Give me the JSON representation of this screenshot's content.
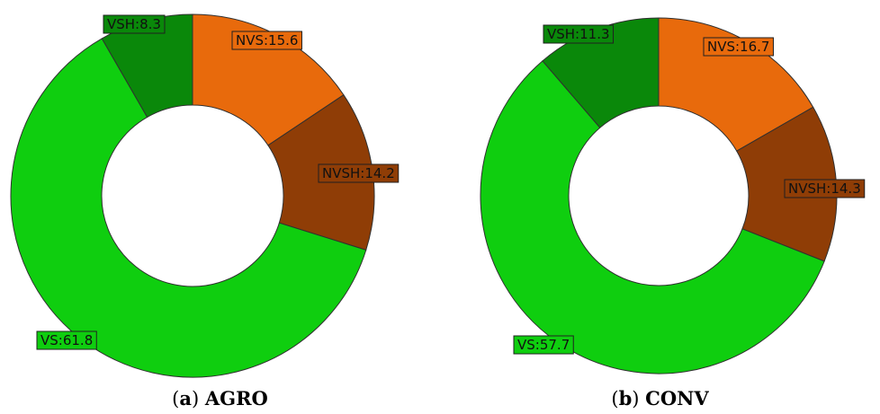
{
  "categories": [
    "NVS",
    "NVSH",
    "VS",
    "VSH"
  ],
  "colors": {
    "NVS": "#e86a0c",
    "NVSH": "#8f3d06",
    "VS": "#0fce0f",
    "VSH": "#0a880a"
  },
  "chart_data": [
    {
      "type": "pie",
      "donut": true,
      "panel": "(a)",
      "name": "AGRO",
      "slices": [
        {
          "label": "NVS",
          "value": 15.6,
          "text": "NVS:15.6"
        },
        {
          "label": "NVSH",
          "value": 14.2,
          "text": "NVSH:14.2"
        },
        {
          "label": "VS",
          "value": 61.8,
          "text": "VS:61.8"
        },
        {
          "label": "VSH",
          "value": 8.3,
          "text": "VSH:8.3"
        }
      ]
    },
    {
      "type": "pie",
      "donut": true,
      "panel": "(b)",
      "name": "CONV",
      "slices": [
        {
          "label": "NVS",
          "value": 16.7,
          "text": "NVS:16.7"
        },
        {
          "label": "NVSH",
          "value": 14.3,
          "text": "NVSH:14.3"
        },
        {
          "label": "VS",
          "value": 57.7,
          "text": "VS:57.7"
        },
        {
          "label": "VSH",
          "value": 11.3,
          "text": "VSH:11.3"
        }
      ]
    }
  ]
}
